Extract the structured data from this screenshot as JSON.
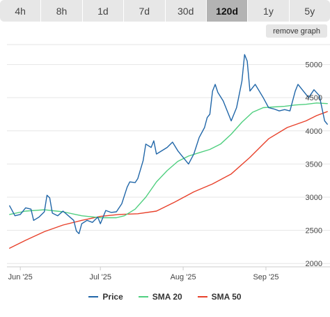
{
  "tabs": [
    {
      "label": "4h",
      "active": false
    },
    {
      "label": "8h",
      "active": false
    },
    {
      "label": "1d",
      "active": false
    },
    {
      "label": "7d",
      "active": false
    },
    {
      "label": "30d",
      "active": false
    },
    {
      "label": "120d",
      "active": true
    },
    {
      "label": "1y",
      "active": false
    },
    {
      "label": "5y",
      "active": false
    }
  ],
  "remove_graph_label": "remove graph",
  "chart_data": {
    "type": "line",
    "title": "",
    "xlabel": "",
    "ylabel": "",
    "x_ticks": [
      "Jun '25",
      "Jul '25",
      "Aug '25",
      "Sep '25"
    ],
    "y_ticks": [
      2000,
      2500,
      3000,
      3500,
      4000,
      4500,
      5000
    ],
    "ylim": [
      1950,
      5300
    ],
    "grid": true,
    "legend_position": "bottom",
    "colors": {
      "price": "#2066a8",
      "sma20": "#4fcf7f",
      "sma50": "#e8412b"
    },
    "series": [
      {
        "name": "Price",
        "key": "price",
        "points": [
          [
            "2025-05-28",
            2870
          ],
          [
            "2025-05-30",
            2720
          ],
          [
            "2025-06-01",
            2740
          ],
          [
            "2025-06-03",
            2840
          ],
          [
            "2025-06-05",
            2820
          ],
          [
            "2025-06-06",
            2650
          ],
          [
            "2025-06-08",
            2700
          ],
          [
            "2025-06-10",
            2780
          ],
          [
            "2025-06-11",
            3030
          ],
          [
            "2025-06-12",
            2990
          ],
          [
            "2025-06-13",
            2760
          ],
          [
            "2025-06-15",
            2720
          ],
          [
            "2025-06-17",
            2790
          ],
          [
            "2025-06-19",
            2720
          ],
          [
            "2025-06-21",
            2650
          ],
          [
            "2025-06-22",
            2490
          ],
          [
            "2025-06-23",
            2450
          ],
          [
            "2025-06-24",
            2600
          ],
          [
            "2025-06-26",
            2650
          ],
          [
            "2025-06-28",
            2620
          ],
          [
            "2025-06-30",
            2700
          ],
          [
            "2025-07-01",
            2600
          ],
          [
            "2025-07-03",
            2800
          ],
          [
            "2025-07-05",
            2770
          ],
          [
            "2025-07-07",
            2780
          ],
          [
            "2025-07-09",
            2900
          ],
          [
            "2025-07-11",
            3150
          ],
          [
            "2025-07-12",
            3230
          ],
          [
            "2025-07-14",
            3220
          ],
          [
            "2025-07-15",
            3280
          ],
          [
            "2025-07-17",
            3550
          ],
          [
            "2025-07-18",
            3800
          ],
          [
            "2025-07-20",
            3750
          ],
          [
            "2025-07-21",
            3850
          ],
          [
            "2025-07-22",
            3650
          ],
          [
            "2025-07-24",
            3700
          ],
          [
            "2025-07-26",
            3750
          ],
          [
            "2025-07-28",
            3830
          ],
          [
            "2025-07-30",
            3700
          ],
          [
            "2025-08-01",
            3600
          ],
          [
            "2025-08-03",
            3500
          ],
          [
            "2025-08-05",
            3650
          ],
          [
            "2025-08-07",
            3900
          ],
          [
            "2025-08-09",
            4050
          ],
          [
            "2025-08-10",
            4200
          ],
          [
            "2025-08-11",
            4250
          ],
          [
            "2025-08-12",
            4600
          ],
          [
            "2025-08-13",
            4700
          ],
          [
            "2025-08-14",
            4580
          ],
          [
            "2025-08-16",
            4450
          ],
          [
            "2025-08-19",
            4150
          ],
          [
            "2025-08-21",
            4350
          ],
          [
            "2025-08-23",
            4750
          ],
          [
            "2025-08-24",
            5150
          ],
          [
            "2025-08-25",
            5050
          ],
          [
            "2025-08-26",
            4600
          ],
          [
            "2025-08-28",
            4700
          ],
          [
            "2025-08-31",
            4500
          ],
          [
            "2025-09-02",
            4350
          ],
          [
            "2025-09-04",
            4330
          ],
          [
            "2025-09-06",
            4300
          ],
          [
            "2025-09-08",
            4320
          ],
          [
            "2025-09-10",
            4300
          ],
          [
            "2025-09-12",
            4600
          ],
          [
            "2025-09-13",
            4700
          ],
          [
            "2025-09-15",
            4600
          ],
          [
            "2025-09-17",
            4500
          ],
          [
            "2025-09-19",
            4620
          ],
          [
            "2025-09-21",
            4530
          ],
          [
            "2025-09-23",
            4150
          ],
          [
            "2025-09-24",
            4100
          ]
        ]
      },
      {
        "name": "SMA 20",
        "key": "sma20",
        "points": [
          [
            "2025-05-28",
            2740
          ],
          [
            "2025-06-03",
            2790
          ],
          [
            "2025-06-10",
            2810
          ],
          [
            "2025-06-17",
            2780
          ],
          [
            "2025-06-24",
            2720
          ],
          [
            "2025-07-01",
            2690
          ],
          [
            "2025-07-07",
            2690
          ],
          [
            "2025-07-10",
            2720
          ],
          [
            "2025-07-14",
            2820
          ],
          [
            "2025-07-18",
            3000
          ],
          [
            "2025-07-22",
            3230
          ],
          [
            "2025-07-26",
            3400
          ],
          [
            "2025-07-30",
            3540
          ],
          [
            "2025-08-03",
            3620
          ],
          [
            "2025-08-07",
            3670
          ],
          [
            "2025-08-11",
            3720
          ],
          [
            "2025-08-15",
            3800
          ],
          [
            "2025-08-19",
            3950
          ],
          [
            "2025-08-23",
            4130
          ],
          [
            "2025-08-27",
            4280
          ],
          [
            "2025-08-31",
            4350
          ],
          [
            "2025-09-04",
            4360
          ],
          [
            "2025-09-08",
            4370
          ],
          [
            "2025-09-12",
            4390
          ],
          [
            "2025-09-16",
            4400
          ],
          [
            "2025-09-20",
            4420
          ],
          [
            "2025-09-24",
            4410
          ]
        ]
      },
      {
        "name": "SMA 50",
        "key": "sma50",
        "points": [
          [
            "2025-05-28",
            2230
          ],
          [
            "2025-06-03",
            2350
          ],
          [
            "2025-06-10",
            2480
          ],
          [
            "2025-06-17",
            2580
          ],
          [
            "2025-06-24",
            2650
          ],
          [
            "2025-07-01",
            2710
          ],
          [
            "2025-07-08",
            2740
          ],
          [
            "2025-07-15",
            2750
          ],
          [
            "2025-07-22",
            2790
          ],
          [
            "2025-07-29",
            2930
          ],
          [
            "2025-08-05",
            3080
          ],
          [
            "2025-08-12",
            3200
          ],
          [
            "2025-08-19",
            3350
          ],
          [
            "2025-08-26",
            3600
          ],
          [
            "2025-09-02",
            3880
          ],
          [
            "2025-09-09",
            4050
          ],
          [
            "2025-09-16",
            4150
          ],
          [
            "2025-09-20",
            4230
          ],
          [
            "2025-09-24",
            4290
          ]
        ]
      }
    ]
  }
}
